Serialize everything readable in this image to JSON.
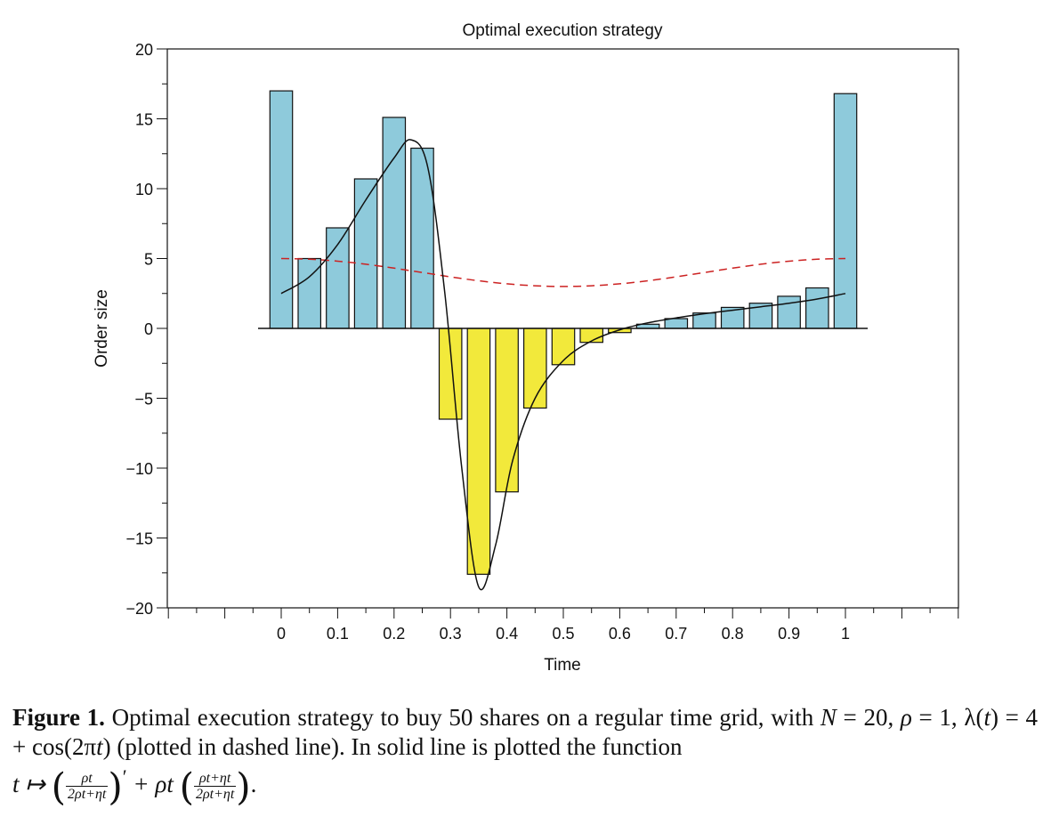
{
  "chart_data": {
    "type": "bar",
    "title": "Optimal execution strategy",
    "xlabel": "Time",
    "ylabel": "Order size",
    "xlim": [
      -0.2,
      1.2
    ],
    "ylim": [
      -20,
      20
    ],
    "xticks": [
      "0",
      "0.1",
      "0.2",
      "0.3",
      "0.4",
      "0.5",
      "0.6",
      "0.7",
      "0.8",
      "0.9",
      "1"
    ],
    "xtick_values": [
      0,
      0.1,
      0.2,
      0.3,
      0.4,
      0.5,
      0.6,
      0.7,
      0.8,
      0.9,
      1
    ],
    "yticks": [
      "20",
      "15",
      "10",
      "5",
      "0",
      "−5",
      "−10",
      "−15",
      "−20"
    ],
    "ytick_values": [
      20,
      15,
      10,
      5,
      0,
      -5,
      -10,
      -15,
      -20
    ],
    "bars": {
      "x": [
        0,
        0.05,
        0.1,
        0.15,
        0.2,
        0.25,
        0.3,
        0.35,
        0.4,
        0.45,
        0.5,
        0.55,
        0.6,
        0.65,
        0.7,
        0.75,
        0.8,
        0.85,
        0.9,
        0.95,
        1.0
      ],
      "values": [
        17.0,
        5.0,
        7.2,
        10.7,
        15.1,
        12.9,
        -6.5,
        -17.6,
        -11.7,
        -5.7,
        -2.6,
        -1.0,
        -0.3,
        0.3,
        0.7,
        1.1,
        1.5,
        1.8,
        2.3,
        2.9,
        16.8
      ],
      "positive_color": "#8ecadb",
      "negative_color": "#f2e93b",
      "edge_color": "#111111"
    },
    "series": [
      {
        "style": "dashed",
        "color": "#cc2222",
        "x": [
          0,
          0.05,
          0.1,
          0.15,
          0.2,
          0.25,
          0.3,
          0.35,
          0.4,
          0.45,
          0.5,
          0.55,
          0.6,
          0.65,
          0.7,
          0.75,
          0.8,
          0.85,
          0.9,
          0.95,
          1.0
        ],
        "values": [
          5.0,
          4.95,
          4.81,
          4.59,
          4.31,
          4.0,
          3.69,
          3.41,
          3.19,
          3.05,
          3.0,
          3.05,
          3.19,
          3.41,
          3.69,
          4.0,
          4.31,
          4.59,
          4.81,
          4.95,
          5.0
        ]
      },
      {
        "style": "solid",
        "color": "#111111",
        "x": [
          0,
          0.05,
          0.1,
          0.15,
          0.2,
          0.23,
          0.26,
          0.29,
          0.32,
          0.35,
          0.38,
          0.41,
          0.45,
          0.5,
          0.55,
          0.6,
          0.65,
          0.7,
          0.75,
          0.8,
          0.85,
          0.9,
          0.95,
          1.0
        ],
        "values": [
          2.5,
          3.7,
          6.0,
          9.2,
          12.2,
          13.5,
          11.5,
          2.5,
          -10.0,
          -18.5,
          -15.5,
          -9.5,
          -5.0,
          -2.3,
          -0.9,
          -0.1,
          0.4,
          0.75,
          1.05,
          1.3,
          1.55,
          1.8,
          2.1,
          2.5
        ]
      }
    ],
    "grid": false,
    "legend": "none"
  },
  "caption": {
    "label": "Figure 1.",
    "text1": " Optimal execution strategy to buy 50 shares on a regular time grid, with ",
    "N": "N",
    "text2": " = 20, ",
    "rho": "ρ",
    "text3": " = 1, λ(",
    "t1": "t",
    "text4": ") = 4 + cos(2π",
    "t2": "t",
    "text5": ") (plotted in dashed line). In solid line is plotted the function",
    "map": "t ↦ ",
    "frac1_num": "ρt",
    "frac1_den": "2ρt+ηt",
    "prime": "′",
    "plus": " + ρt ",
    "frac2_num": "ρt+ηt",
    "frac2_den": "2ρt+ηt",
    "end": "."
  }
}
